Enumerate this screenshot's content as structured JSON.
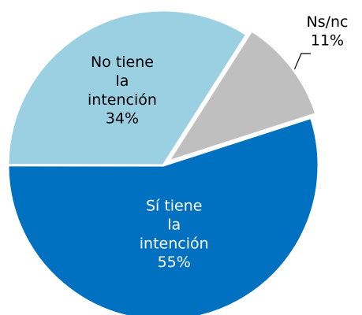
{
  "chart_data": {
    "type": "pie",
    "categories": [
      "Ns/nc",
      "Sí tiene la intención",
      "No tiene la intención"
    ],
    "values": [
      11,
      55,
      34
    ],
    "value_labels": [
      "11%",
      "55%",
      "34%"
    ],
    "colors": [
      "#bfbfbf",
      "#0070c0",
      "#9bd0e2"
    ]
  }
}
